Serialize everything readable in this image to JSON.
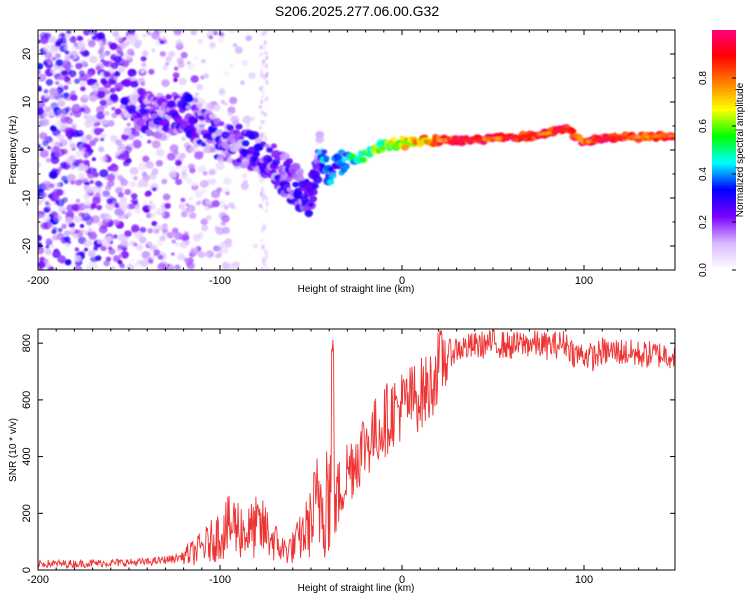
{
  "title": "S206.2025.277.06.00.G32",
  "chart_data": [
    {
      "type": "heatmap",
      "xlabel": "Height of straight line (km)",
      "ylabel": "Frequency (Hz)",
      "xlim": [
        -200,
        150
      ],
      "ylim": [
        -25,
        25
      ],
      "x_ticks": [
        -200,
        -100,
        0,
        100
      ],
      "y_ticks": [
        20,
        10,
        0,
        -10,
        -20
      ],
      "colorbar": {
        "label": "Normalized spectral amplitude",
        "range": [
          0,
          1
        ],
        "ticks": [
          0.0,
          0.2,
          0.4,
          0.6,
          0.8
        ],
        "colors": [
          "#ffffff",
          "#d8b8ff",
          "#7a00ff",
          "#0000ff",
          "#00ffff",
          "#00ff00",
          "#ffff00",
          "#ff8000",
          "#ff0000",
          "#ff0080"
        ]
      },
      "ridge": {
        "x": [
          -150,
          -130,
          -120,
          -110,
          -100,
          -90,
          -80,
          -70,
          -60,
          -50,
          -45,
          -40,
          -35,
          -30,
          -20,
          -10,
          0,
          10,
          20,
          30,
          40,
          50,
          60,
          70,
          80,
          85,
          90,
          95,
          100,
          110,
          120,
          130,
          140,
          150
        ],
        "y": [
          7,
          7,
          8,
          5,
          2,
          1,
          -1,
          -3,
          -7,
          -10,
          0,
          -5,
          -3,
          -2,
          -1,
          1,
          1.5,
          1.7,
          2,
          2,
          2.2,
          2.4,
          2.6,
          3,
          3.5,
          4,
          4.5,
          3,
          1.5,
          2.5,
          2.6,
          2.7,
          2.9,
          3
        ]
      }
    },
    {
      "type": "line",
      "xlabel": "Height of straight line (km)",
      "ylabel": "SNR (10 * v/v)",
      "xlim": [
        -200,
        150
      ],
      "ylim": [
        0,
        850
      ],
      "x_ticks": [
        -200,
        -100,
        0,
        100
      ],
      "y_ticks": [
        0,
        200,
        400,
        600,
        800
      ],
      "color": "#ee3333",
      "series": [
        {
          "name": "SNR",
          "x": [
            -200,
            -180,
            -160,
            -140,
            -125,
            -115,
            -105,
            -98,
            -92,
            -85,
            -80,
            -75,
            -70,
            -65,
            -60,
            -55,
            -50,
            -45,
            -42,
            -40,
            -38,
            -36,
            -34,
            -30,
            -25,
            -20,
            -15,
            -10,
            -5,
            0,
            5,
            10,
            15,
            20,
            25,
            30,
            40,
            50,
            60,
            70,
            80,
            90,
            95,
            100,
            105,
            110,
            120,
            130,
            140,
            150
          ],
          "y": [
            22,
            22,
            25,
            28,
            40,
            60,
            100,
            140,
            160,
            130,
            150,
            140,
            100,
            70,
            80,
            120,
            170,
            250,
            300,
            280,
            300,
            250,
            280,
            350,
            400,
            450,
            480,
            520,
            560,
            580,
            600,
            620,
            640,
            720,
            760,
            780,
            790,
            800,
            790,
            800,
            790,
            800,
            760,
            760,
            750,
            770,
            770,
            760,
            760,
            760
          ]
        }
      ]
    }
  ]
}
